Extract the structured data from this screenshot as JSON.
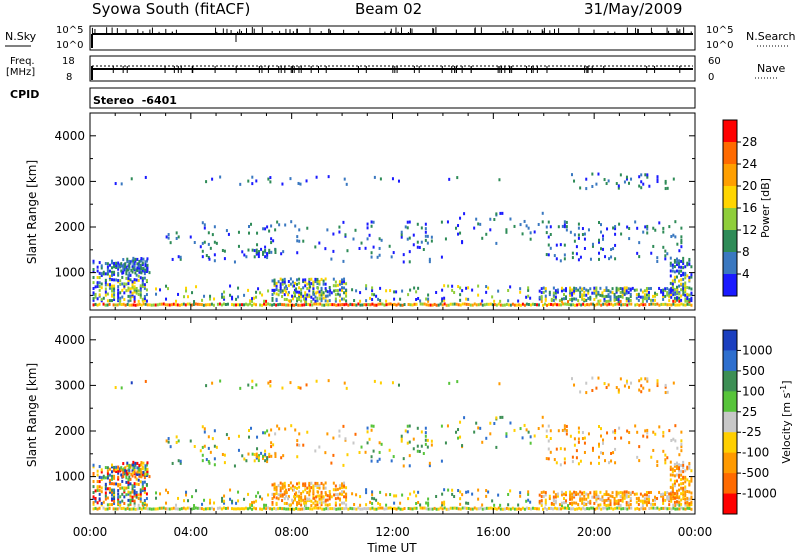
{
  "header": {
    "station": "Syowa South (fitACF)",
    "beam": "Beam 02",
    "date": "31/May/2009"
  },
  "noise_panel": {
    "left_label": "N.Sky",
    "right_label": "N.Search",
    "left_ticks": [
      "10^5",
      "10^0"
    ],
    "right_ticks": [
      "10^5",
      "10^0"
    ]
  },
  "freq_panel": {
    "left_label_1": "Freq.",
    "left_label_2": "[MHz]",
    "left_ticks": [
      "18",
      "8"
    ],
    "right_label": "Nave",
    "right_ticks": [
      "60",
      "0"
    ]
  },
  "cpid_panel": {
    "label": "CPID",
    "value": "Stereo  -6401"
  },
  "power_colorbar": {
    "label": "Power [dB]",
    "ticks": [
      "28",
      "24",
      "20",
      "16",
      "12",
      "8",
      "4"
    ],
    "colors": [
      "#ff0000",
      "#ff6a00",
      "#ff9f00",
      "#ffd500",
      "#8fce3a",
      "#2e8b57",
      "#3a78c0",
      "#1a1aff"
    ]
  },
  "velocity_colorbar": {
    "label": "Velocity [m s",
    "label_sup": "-1",
    "label_end": "]",
    "ticks": [
      "1000",
      "500",
      "100",
      "25",
      "-25",
      "-100",
      "-500",
      "-1000"
    ],
    "colors": [
      "#1b3fbf",
      "#2e6fce",
      "#3d8f55",
      "#57c43a",
      "#c8c8c8",
      "#ffcf00",
      "#ff9a00",
      "#ff6a00",
      "#ff0000"
    ]
  },
  "chart_data": [
    {
      "type": "heatmap",
      "title": "Power",
      "ylabel": "Slant Range [km]",
      "xlabel": "",
      "ylim": [
        180,
        4500
      ],
      "xlim_hours": [
        0,
        24
      ],
      "yticks": [
        "4000",
        "3000",
        "2000",
        "1000"
      ],
      "ytick_values": [
        4000,
        3000,
        2000,
        1000
      ],
      "xtick_labels": [],
      "colorbar": "Power [dB]"
    },
    {
      "type": "heatmap",
      "title": "Velocity",
      "ylabel": "Slant Range [km]",
      "xlabel": "Time UT",
      "ylim": [
        180,
        4500
      ],
      "xlim_hours": [
        0,
        24
      ],
      "yticks": [
        "4000",
        "3000",
        "2000",
        "1000"
      ],
      "ytick_values": [
        4000,
        3000,
        2000,
        1000
      ],
      "xtick_labels": [
        "00:00",
        "04:00",
        "08:00",
        "12:00",
        "16:00",
        "20:00",
        "00:00"
      ],
      "xtick_values": [
        0,
        4,
        8,
        12,
        16,
        20,
        24
      ],
      "colorbar": "Velocity [m s-1]"
    }
  ]
}
